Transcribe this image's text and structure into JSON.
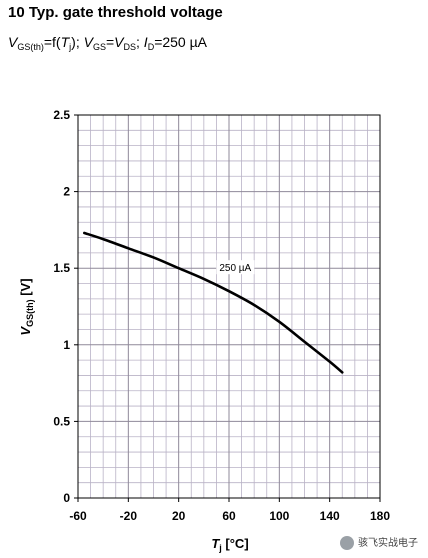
{
  "header": {
    "title": "10 Typ. gate threshold voltage",
    "subtitle": {
      "v1_main": "V",
      "v1_sub": "GS(th)",
      "eq1": "=f(",
      "tj_main": "T",
      "tj_sub": "j",
      "close1": ");",
      "v2_main": "V",
      "v2_sub": "GS",
      "eq2": "=",
      "v3_main": "V",
      "v3_sub": "DS",
      "sep": ";",
      "id_main": "I",
      "id_sub": "D",
      "id_val": "=250 µA"
    }
  },
  "chart_data": {
    "type": "line",
    "xlabel_main": "T",
    "xlabel_sub": "j",
    "xlabel_unit": " [°C]",
    "ylabel_main": "V",
    "ylabel_sub": "GS(th)",
    "ylabel_unit": " [V]",
    "xlim": [
      -60,
      180
    ],
    "ylim": [
      0,
      2.5
    ],
    "x_ticks": [
      -60,
      -20,
      20,
      60,
      100,
      140,
      180
    ],
    "x_tick_labels": [
      "-60",
      "-20",
      "20",
      "60",
      "100",
      "140",
      "180"
    ],
    "y_ticks": [
      0,
      0.5,
      1,
      1.5,
      2,
      2.5
    ],
    "y_tick_labels": [
      "0",
      "0.5",
      "1",
      "1.5",
      "2",
      "2.5"
    ],
    "x_minor_step": 10,
    "y_minor_step": 0.1,
    "grid": true,
    "series": [
      {
        "x": [
          -55,
          -40,
          -20,
          0,
          20,
          40,
          60,
          80,
          100,
          120,
          140,
          150
        ],
        "y": [
          1.73,
          1.69,
          1.63,
          1.57,
          1.5,
          1.43,
          1.35,
          1.26,
          1.15,
          1.02,
          0.89,
          0.82
        ]
      }
    ],
    "annotations": [
      {
        "text": "250 µA",
        "x": 65,
        "y": 1.5
      }
    ]
  },
  "watermark": {
    "text": "骇飞实战电子"
  },
  "colors": {
    "grid_minor": "#b9b2c6",
    "grid_major": "#8f8999",
    "line": "#000000"
  }
}
